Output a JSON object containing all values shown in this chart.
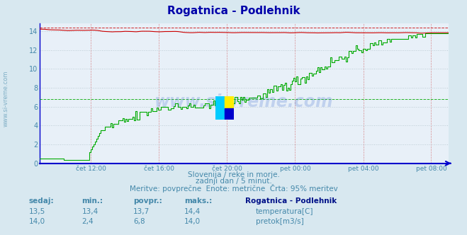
{
  "title": "Rogatnica - Podlehnik",
  "bg_color": "#d8e8f0",
  "plot_bg_color": "#e8f0f8",
  "grid_color_major": "#b8c8d0",
  "x_labels": [
    "čet 12:00",
    "čet 16:00",
    "čet 20:00",
    "pet 00:00",
    "pet 04:00",
    "pet 08:00"
  ],
  "x_ticks": [
    0.125,
    0.292,
    0.458,
    0.625,
    0.792,
    0.958
  ],
  "y_ticks": [
    0,
    2,
    4,
    6,
    8,
    10,
    12,
    14
  ],
  "ylim_min": 0,
  "ylim_max": 14.8,
  "xlim_min": 0,
  "xlim_max": 1,
  "temp_color": "#cc0000",
  "flow_color": "#00aa00",
  "axis_color": "#0000cc",
  "watermark_text": "www.si-vreme.com",
  "subtitle1": "Slovenija / reke in morje.",
  "subtitle2": "zadnji dan / 5 minut.",
  "subtitle3": "Meritve: povprečne  Enote: metrične  Črta: 95% meritev",
  "label_color": "#4488aa",
  "legend_title": "Rogatnica - Podlehnik",
  "sedaj_temp": "13,5",
  "min_temp": "13,4",
  "povpr_temp": "13,7",
  "maks_temp": "14,4",
  "sedaj_flow": "14,0",
  "min_flow": "2,4",
  "povpr_flow": "6,8",
  "maks_flow": "14,0",
  "temp_max_line": 14.4,
  "temp_avg_line": 13.7,
  "flow_max_line": 14.0,
  "flow_avg_line": 6.8
}
